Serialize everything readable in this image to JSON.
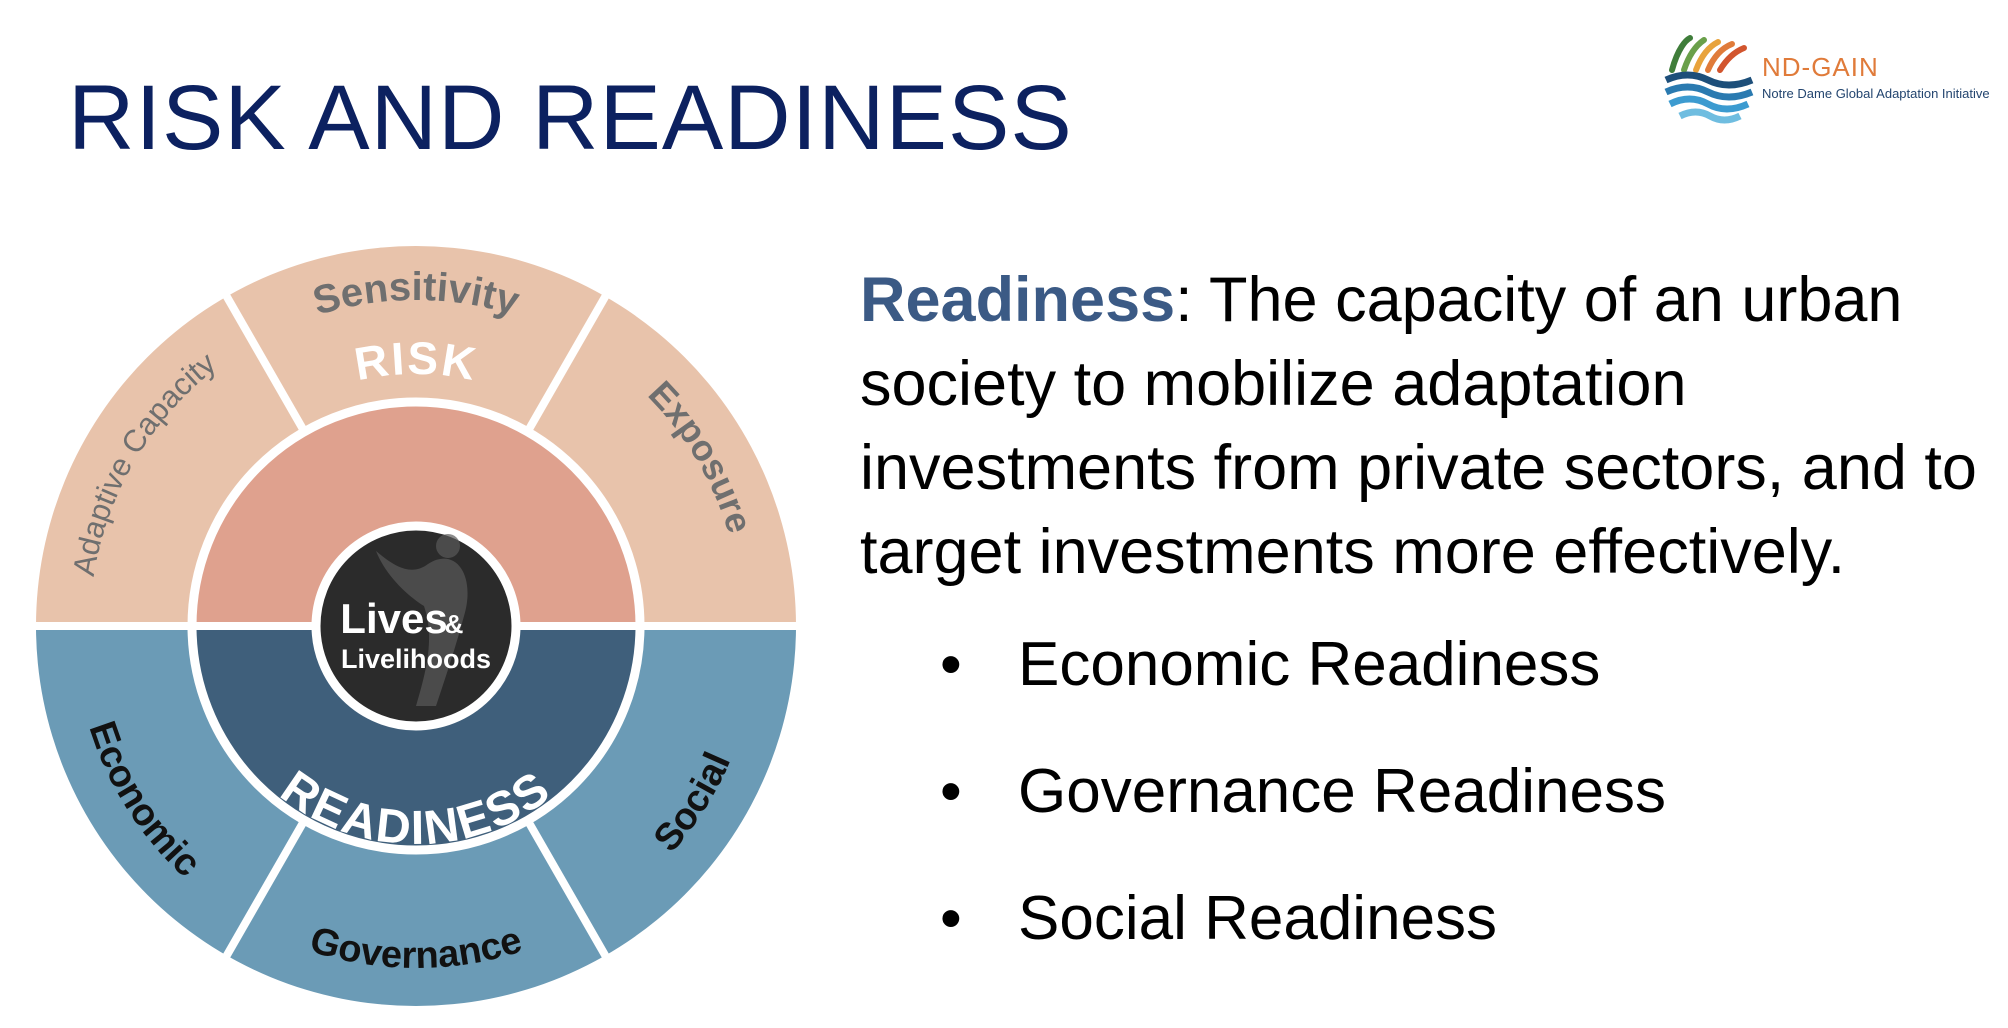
{
  "title": "RISK AND READINESS",
  "logo": {
    "name": "ND-GAIN",
    "subtitle": "Notre Dame Global Adaptation Initiative",
    "icon": "wave-logo-icon"
  },
  "diagram": {
    "center_label_main": "Lives",
    "center_label_amp": "&",
    "center_label_sub": "Livelihoods",
    "risk": {
      "label": "RISK",
      "components": [
        "Adaptive Capacity",
        "Sensitivity",
        "Exposure"
      ]
    },
    "readiness": {
      "label": "READINESS",
      "components": [
        "Economic",
        "Governance",
        "Social"
      ]
    },
    "colors": {
      "risk_outer": "#e8c3ab",
      "risk_inner": "#dfa18e",
      "readiness_outer": "#6b9bb6",
      "readiness_inner": "#3f5f7b",
      "center": "#2b2b2b"
    }
  },
  "definition": {
    "term": "Readiness",
    "text": ": The capacity of an urban society to mobilize adaptation investments from private sectors, and to target investments more effectively."
  },
  "bullets": [
    "Economic Readiness",
    "Governance Readiness",
    "Social Readiness"
  ]
}
